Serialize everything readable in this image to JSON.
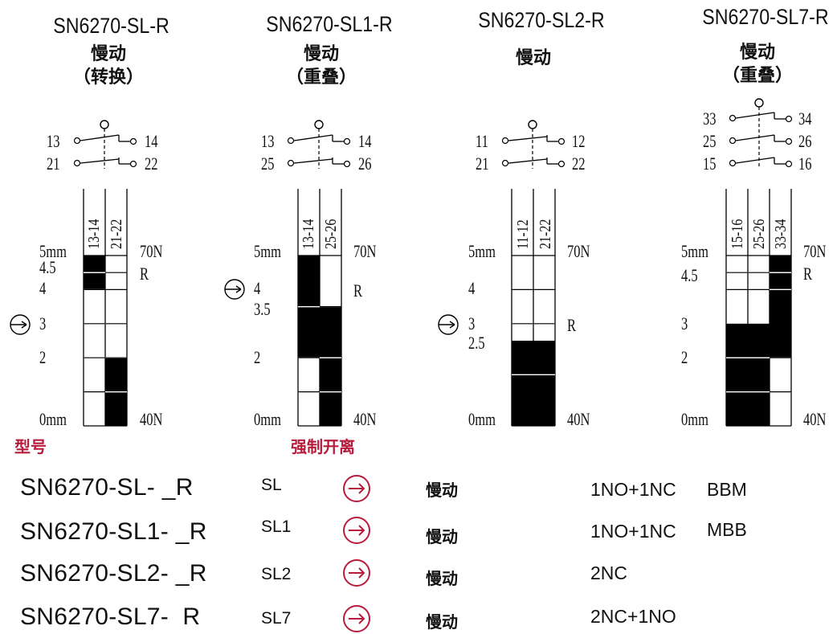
{
  "colors": {
    "accent": "#b71c3c",
    "fill": "#000000"
  },
  "diagrams": [
    {
      "title": "SN6270-SL-R",
      "mode": "慢动",
      "note": "（转换）",
      "contacts": [
        [
          "13",
          "14"
        ],
        [
          "21",
          "22"
        ]
      ],
      "columns": [
        "13-14",
        "21-22"
      ],
      "top_force": "70N",
      "bottom_force": "40N",
      "r_label": "R",
      "top_travel": "5mm",
      "bottom_travel": "0mm",
      "travel_labels": [
        "4.5",
        "4",
        "3",
        "2"
      ],
      "positive_opening_icon": "arrow-in-circle-icon",
      "fills": [
        {
          "col": 0,
          "from": 4,
          "to": 5
        },
        {
          "col": 1,
          "from": 0,
          "to": 2
        }
      ]
    },
    {
      "title": "SN6270-SL1-R",
      "mode": "慢动",
      "note": "（重叠）",
      "contacts": [
        [
          "13",
          "14"
        ],
        [
          "25",
          "26"
        ]
      ],
      "columns": [
        "13-14",
        "25-26"
      ],
      "top_force": "70N",
      "bottom_force": "40N",
      "r_label": "R",
      "top_travel": "5mm",
      "bottom_travel": "0mm",
      "travel_labels": [
        "4",
        "3.5",
        "2"
      ],
      "positive_opening_icon": "arrow-in-circle-icon",
      "fills": [
        {
          "col": 0,
          "from": 2,
          "to": 5
        },
        {
          "col": 1,
          "from": 0,
          "to": 3.5
        }
      ]
    },
    {
      "title": "SN6270-SL2-R",
      "mode": "慢动",
      "note": "",
      "contacts": [
        [
          "11",
          "12"
        ],
        [
          "21",
          "22"
        ]
      ],
      "columns": [
        "11-12",
        "21-22"
      ],
      "top_force": "70N",
      "bottom_force": "40N",
      "r_label": "R",
      "top_travel": "5mm",
      "bottom_travel": "0mm",
      "travel_labels": [
        "4",
        "3",
        "2.5"
      ],
      "positive_opening_icon": "arrow-in-circle-icon",
      "fills": [
        {
          "col": 0,
          "from": 0,
          "to": 2.5
        },
        {
          "col": 1,
          "from": 0,
          "to": 2.5
        }
      ]
    },
    {
      "title": "SN6270-SL7-R",
      "mode": "慢动",
      "note": "（重叠）",
      "contacts": [
        [
          "33",
          "34"
        ],
        [
          "25",
          "26"
        ],
        [
          "15",
          "16"
        ]
      ],
      "columns": [
        "15-16",
        "25-26",
        "33-34"
      ],
      "top_force": "70N",
      "bottom_force": "40N",
      "r_label": "R",
      "top_travel": "5mm",
      "bottom_travel": "0mm",
      "travel_labels": [
        "4.5",
        "3",
        "2"
      ],
      "positive_opening_icon": "arrow-in-circle-icon",
      "fills": [
        {
          "col": 0,
          "from": 0,
          "to": 3
        },
        {
          "col": 1,
          "from": 0,
          "to": 3
        },
        {
          "col": 2,
          "from": 2,
          "to": 5
        }
      ]
    }
  ],
  "legend": {
    "model_label": "型号",
    "forced_label": "强制开离"
  },
  "table": [
    {
      "model": "SN6270-SL- _R",
      "code": "SL",
      "icon": "arrow-in-circle-icon",
      "mode": "慢动",
      "contacts": "1NO+1NC",
      "type": "BBM"
    },
    {
      "model": "SN6270-SL1- _R",
      "code": "SL1",
      "icon": "arrow-in-circle-icon",
      "mode": "慢动",
      "contacts": "1NO+1NC",
      "type": "MBB"
    },
    {
      "model": "SN6270-SL2- _R",
      "code": "SL2",
      "icon": "arrow-in-circle-icon",
      "mode": "慢动",
      "contacts": "2NC",
      "type": ""
    },
    {
      "model": "SN6270-SL7-  R",
      "code": "SL7",
      "icon": "arrow-in-circle-icon",
      "mode": "慢动",
      "contacts": "2NC+1NO",
      "type": ""
    }
  ]
}
